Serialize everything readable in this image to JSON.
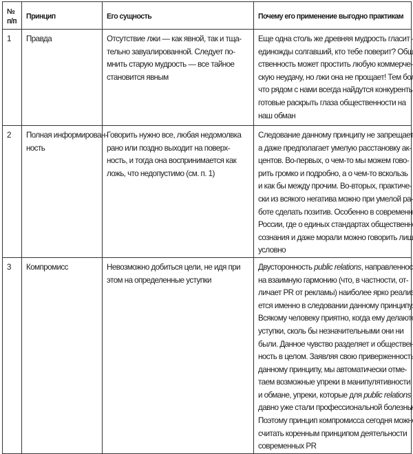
{
  "table": {
    "headers": [
      "№ п/п",
      "Принцип",
      "Его сущность",
      "Почему его применение выгодно практикам"
    ],
    "rows": [
      {
        "num": "1",
        "principle": [
          "Правда"
        ],
        "essence": [
          "Отсутствие лжи — как явной, так и тща-",
          "тельно завуалированной. Следует по-",
          "мнить старую мудрость — все тайное",
          "становится явным"
        ],
        "benefit": [
          "Еще одна столь же древняя мудрость гласит —",
          "единожды солгавший, кто тебе поверит? Обще-",
          "ственность может простить любую коммерче-",
          "скую неудачу, но лжи она не прощает! Тем более",
          "что рядом с нами всегда найдутся конкуренты,",
          "готовые раскрыть глаза общественности на",
          "наш обман"
        ]
      },
      {
        "num": "2",
        "principle": [
          "Полная информирован-",
          "ность"
        ],
        "essence": [
          "Говорить нужно все, любая недомолвка",
          "рано или поздно выходит на поверх-",
          "ность, и тогда она воспринимается как",
          "ложь, что недопустимо (см. п. 1)"
        ],
        "benefit": [
          "Следование данному принципу не запрещает,",
          "а даже предполагает умелую расстановку ак-",
          "центов. Во-первых, о чем-то мы можем гово-",
          "рить громко и подробно, а о чем-то вскользь",
          "и как бы между прочим. Во-вторых, практиче-",
          "ски из всякого негатива можно при умелой ра-",
          "боте сделать позитив. Особенно в современной",
          "России, где о единых стандартах общественного",
          "сознания и даже морали можно говорить лишь",
          "условно"
        ]
      },
      {
        "num": "3",
        "principle": [
          "Компромисс"
        ],
        "essence": [
          "Невозможно добиться цели, не идя при",
          "этом на определенные уступки"
        ],
        "benefit": [
          [
            {
              "t": "Двусторонность "
            },
            {
              "t": "public relations",
              "i": true
            },
            {
              "t": ", направленность"
            }
          ],
          "на взаимную гармонию (что, в частности, от-",
          "личает PR от рекламы) наиболее ярко реализу-",
          "ется именно в следовании данному принципу.",
          "Всякому человеку приятно, когда ему делаются",
          "уступки, сколь бы незначительными они ни",
          "были. Данное чувство разделяет и обществен-",
          "ность в целом. Заявляя свою приверженность",
          "данному принципу, мы автоматически отме-",
          "таем возможные упреки в манипулятивности",
          [
            {
              "t": "и обмане, упреки, которые для "
            },
            {
              "t": "public relations",
              "i": true
            }
          ],
          "давно уже стали профессиональной болезнью.",
          "Поэтому принцип компромисса сегодня можно",
          "считать коренным принципом деятельности",
          "современных PR"
        ]
      }
    ]
  }
}
